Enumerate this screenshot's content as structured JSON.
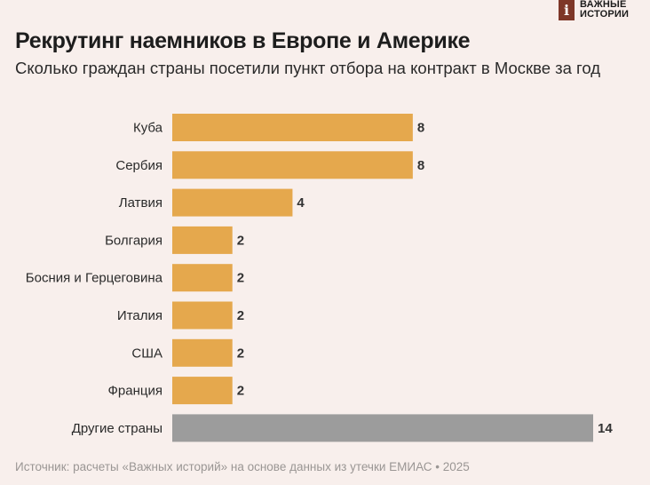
{
  "logo": {
    "text": "ВАЖНЫЕ\nИСТОРИИ",
    "mark": "i",
    "mark_color": "#7e3728"
  },
  "header": {
    "title": "Рекрутинг наемников в Европе и Америке",
    "subtitle": "Сколько граждан страны посетили пункт отбора на контракт в Москве за год"
  },
  "colors": {
    "primary": "#e5a84d",
    "other": "#9c9c9c"
  },
  "chart_data": {
    "type": "bar",
    "orientation": "horizontal",
    "categories": [
      "Куба",
      "Сербия",
      "Латвия",
      "Болгария",
      "Босния и Герцеговина",
      "Италия",
      "США",
      "Франция",
      "Другие страны"
    ],
    "values": [
      8,
      8,
      4,
      2,
      2,
      2,
      2,
      2,
      14
    ],
    "data_labels": [
      "8",
      "8",
      "4",
      "2",
      "2",
      "2",
      "2",
      "2",
      "14"
    ],
    "highlight_last": true,
    "xlim": [
      0,
      14
    ],
    "grid": false,
    "legend": "none"
  },
  "footer": {
    "source": "Источник: расчеты «Важных историй» на основе данных из утечки ЕМИАС • 2025"
  }
}
